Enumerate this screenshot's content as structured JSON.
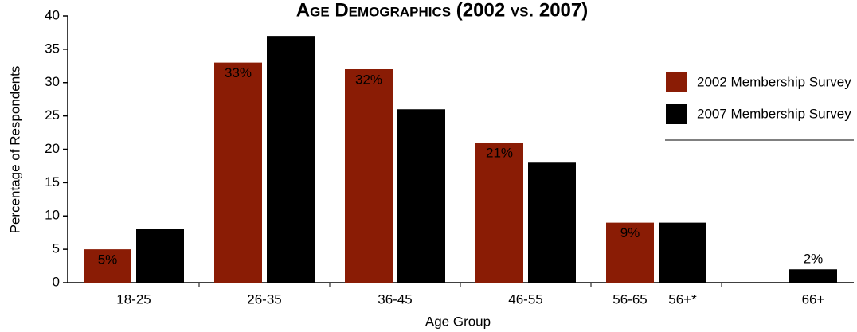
{
  "chart_data": {
    "type": "bar",
    "title": "Age Demographics (2002 vs. 2007)",
    "x_label": "Age Group",
    "y_label": "Percentage of Respondents",
    "categories": [
      "18-25",
      "26-35",
      "36-45",
      "46-55",
      "56-65",
      "66+"
    ],
    "series": [
      {
        "name": "2002 Membership Survey",
        "color": "#8a1c05",
        "values": [
          5,
          33,
          32,
          21,
          9,
          null
        ],
        "value_labels": [
          "5%",
          "33%",
          "32%",
          "21%",
          "9%",
          null
        ]
      },
      {
        "name": "2007 Membership Survey",
        "color": "#000000",
        "values": [
          8,
          37,
          26,
          18,
          9,
          2
        ],
        "value_labels": [
          "8%",
          "37%",
          "26%",
          "18%",
          "9%",
          "2%"
        ]
      }
    ],
    "annotations": [
      {
        "text": "56+*",
        "category": 4,
        "series": 1
      }
    ],
    "ylim": [
      0,
      40
    ],
    "yticks": [
      0,
      5,
      10,
      15,
      20,
      25,
      30,
      35,
      40
    ],
    "legend": "right"
  }
}
